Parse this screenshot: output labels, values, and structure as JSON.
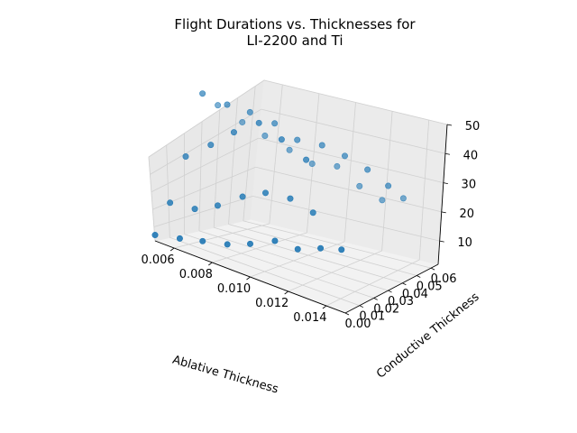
{
  "chart_data": {
    "type": "scatter",
    "title": [
      "Flight Durations vs. Thicknesses for",
      "LI-2200 and Ti"
    ],
    "xlabel": "Ablative Thickness",
    "ylabel": "Conductive Thickness",
    "zlabel": "",
    "x_ticks": [
      "0.006",
      "0.008",
      "0.010",
      "0.012",
      "0.014"
    ],
    "y_ticks": [
      "0.00",
      "0.01",
      "0.02",
      "0.03",
      "0.04",
      "0.05",
      "0.06"
    ],
    "z_ticks": [
      "10",
      "20",
      "30",
      "40",
      "50"
    ],
    "xlim": [
      0.005,
      0.015
    ],
    "ylim": [
      0.0,
      0.065
    ],
    "zlim": [
      2,
      50
    ],
    "grid": true,
    "marker_color": "#1f77b4",
    "series": [
      {
        "points": [
          {
            "x": 0.005,
            "y": 0.0,
            "z": 4
          },
          {
            "x": 0.0063,
            "y": 0.0,
            "z": 6
          },
          {
            "x": 0.0075,
            "y": 0.0,
            "z": 8
          },
          {
            "x": 0.0088,
            "y": 0.0,
            "z": 10
          },
          {
            "x": 0.01,
            "y": 0.0,
            "z": 13
          },
          {
            "x": 0.0113,
            "y": 0.0,
            "z": 17
          },
          {
            "x": 0.0125,
            "y": 0.0,
            "z": 17
          },
          {
            "x": 0.0137,
            "y": 0.0,
            "z": 20
          },
          {
            "x": 0.0148,
            "y": 0.0,
            "z": 22
          },
          {
            "x": 0.005,
            "y": 0.01,
            "z": 14
          },
          {
            "x": 0.0063,
            "y": 0.01,
            "z": 15
          },
          {
            "x": 0.0075,
            "y": 0.01,
            "z": 19
          },
          {
            "x": 0.0088,
            "y": 0.01,
            "z": 25
          },
          {
            "x": 0.01,
            "y": 0.01,
            "z": 29
          },
          {
            "x": 0.0113,
            "y": 0.01,
            "z": 30
          },
          {
            "x": 0.0125,
            "y": 0.01,
            "z": 28
          },
          {
            "x": 0.005,
            "y": 0.02,
            "z": 29
          },
          {
            "x": 0.0063,
            "y": 0.02,
            "z": 36
          },
          {
            "x": 0.0075,
            "y": 0.02,
            "z": 43
          },
          {
            "x": 0.0088,
            "y": 0.02,
            "z": 49
          },
          {
            "x": 0.01,
            "y": 0.02,
            "z": 46
          },
          {
            "x": 0.0113,
            "y": 0.02,
            "z": 42
          },
          {
            "x": 0.005,
            "y": 0.03,
            "z": 50
          },
          {
            "x": 0.0063,
            "y": 0.03,
            "z": 49
          },
          {
            "x": 0.0075,
            "y": 0.03,
            "z": 49
          },
          {
            "x": 0.0088,
            "y": 0.03,
            "z": 48
          },
          {
            "x": 0.01,
            "y": 0.03,
            "z": 45
          },
          {
            "x": 0.0113,
            "y": 0.03,
            "z": 46
          },
          {
            "x": 0.0125,
            "y": 0.03,
            "z": 45
          },
          {
            "x": 0.0137,
            "y": 0.03,
            "z": 43
          },
          {
            "x": 0.0148,
            "y": 0.03,
            "z": 40
          },
          {
            "x": 0.005,
            "y": 0.04,
            "z": 45
          },
          {
            "x": 0.0063,
            "y": 0.04,
            "z": 42
          },
          {
            "x": 0.0075,
            "y": 0.04,
            "z": 40
          },
          {
            "x": 0.0088,
            "y": 0.04,
            "z": 38
          },
          {
            "x": 0.01,
            "y": 0.04,
            "z": 36
          },
          {
            "x": 0.0113,
            "y": 0.04,
            "z": 38
          },
          {
            "x": 0.0125,
            "y": 0.04,
            "z": 34
          },
          {
            "x": 0.0137,
            "y": 0.04,
            "z": 32
          },
          {
            "x": 0.0148,
            "y": 0.04,
            "z": 35
          }
        ]
      }
    ]
  }
}
